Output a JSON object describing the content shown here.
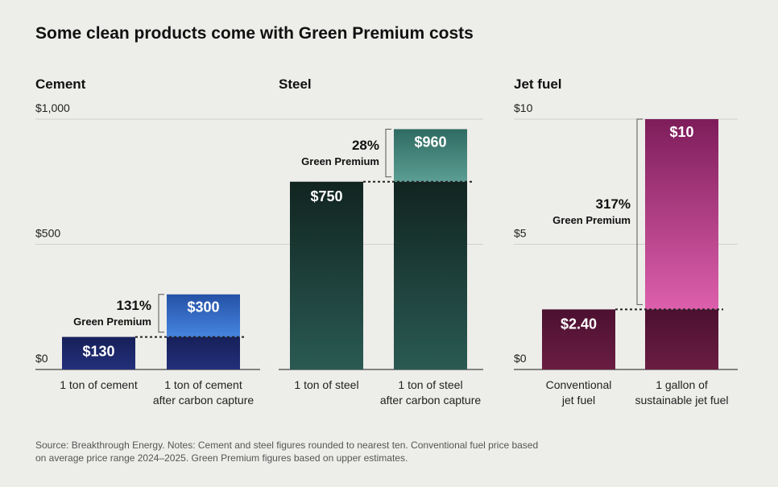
{
  "title": "Some clean products come with Green Premium costs",
  "source_line1": "Source: Breakthrough Energy. Notes: Cement and steel figures rounded to nearest ten. Conventional fuel price based",
  "source_line2": "on average price range 2024–2025. Green Premium figures based on upper estimates.",
  "green_premium_label": "Green Premium",
  "colors": {
    "cement_conventional": "#1c2462",
    "cement_clean_top": "#3a6fd0",
    "steel_conventional": "#1f3a35",
    "steel_clean_top": "#3f8077",
    "jet_conventional": "#5a1638",
    "jet_clean_top": "#d75ba3"
  },
  "chart_data": [
    {
      "type": "bar",
      "title": "Cement",
      "ylim": [
        0,
        1000
      ],
      "yticks": [
        {
          "v": 0,
          "label": "$0"
        },
        {
          "v": 500,
          "label": "$500"
        },
        {
          "v": 1000,
          "label": "$1,000"
        }
      ],
      "categories": [
        [
          "1 ton of cement"
        ],
        [
          "1 ton of cement",
          "after carbon capture"
        ]
      ],
      "values": [
        130,
        300
      ],
      "value_labels": [
        "$130",
        "$300"
      ],
      "green_premium": "131%"
    },
    {
      "type": "bar",
      "title": "Steel",
      "ylim": [
        0,
        1000
      ],
      "yticks": [],
      "categories": [
        [
          "1 ton of steel"
        ],
        [
          "1 ton of steel",
          "after carbon capture"
        ]
      ],
      "values": [
        750,
        960
      ],
      "value_labels": [
        "$750",
        "$960"
      ],
      "green_premium": "28%"
    },
    {
      "type": "bar",
      "title": "Jet fuel",
      "ylim": [
        0,
        10
      ],
      "yticks": [
        {
          "v": 0,
          "label": "$0"
        },
        {
          "v": 5,
          "label": "$5"
        },
        {
          "v": 10,
          "label": "$10"
        }
      ],
      "categories": [
        [
          "Conventional",
          "jet fuel"
        ],
        [
          "1 gallon of",
          "sustainable jet fuel"
        ]
      ],
      "values": [
        2.4,
        10
      ],
      "value_labels": [
        "$2.40",
        "$10"
      ],
      "green_premium": "317%"
    }
  ]
}
